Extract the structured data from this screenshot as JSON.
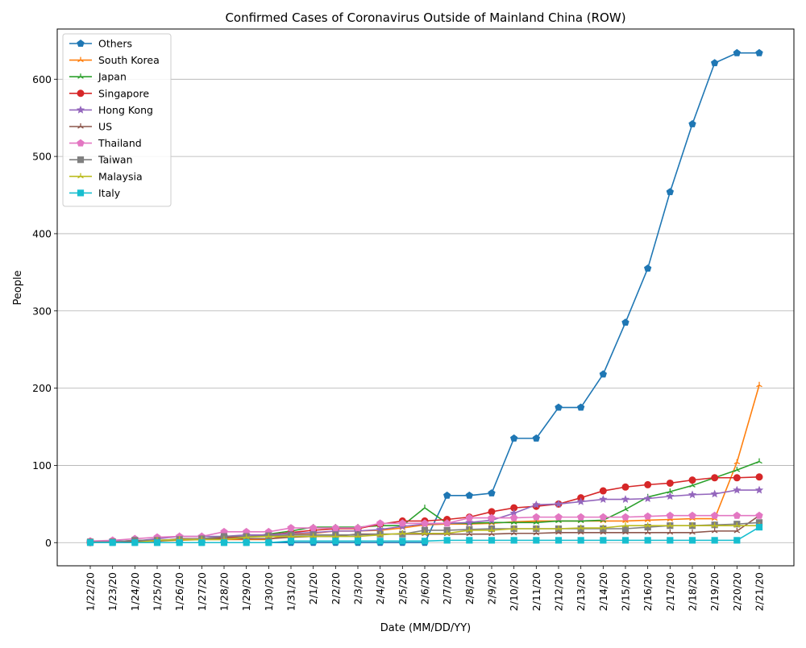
{
  "chart_data": {
    "type": "line",
    "title": "Confirmed Cases of Coronavirus Outside of Mainland China (ROW)",
    "xlabel": "Date (MM/DD/YY)",
    "ylabel": "People",
    "ylim": [
      -30,
      665
    ],
    "yticks": [
      0,
      100,
      200,
      300,
      400,
      500,
      600
    ],
    "grid": "horizontal",
    "legend_position": "upper-left",
    "categories": [
      "1/22/20",
      "1/23/20",
      "1/24/20",
      "1/25/20",
      "1/26/20",
      "1/27/20",
      "1/28/20",
      "1/29/20",
      "1/30/20",
      "1/31/20",
      "2/1/20",
      "2/2/20",
      "2/3/20",
      "2/4/20",
      "2/5/20",
      "2/6/20",
      "2/7/20",
      "2/8/20",
      "2/9/20",
      "2/10/20",
      "2/11/20",
      "2/12/20",
      "2/13/20",
      "2/14/20",
      "2/15/20",
      "2/16/20",
      "2/17/20",
      "2/18/20",
      "2/19/20",
      "2/20/20",
      "2/21/20"
    ],
    "series": [
      {
        "name": "Others",
        "color": "#1f77b4",
        "marker": "pentagon",
        "values": [
          0,
          0,
          0,
          0,
          0,
          0,
          0,
          0,
          0,
          0,
          0,
          0,
          0,
          0,
          0,
          0,
          61,
          61,
          64,
          135,
          135,
          175,
          175,
          218,
          285,
          355,
          454,
          542,
          621,
          634,
          634
        ]
      },
      {
        "name": "South Korea",
        "color": "#ff7f0e",
        "marker": "tri",
        "values": [
          1,
          1,
          2,
          2,
          3,
          4,
          4,
          4,
          4,
          11,
          12,
          15,
          15,
          16,
          19,
          23,
          24,
          24,
          25,
          27,
          28,
          28,
          28,
          28,
          28,
          29,
          30,
          31,
          31,
          104,
          204
        ]
      },
      {
        "name": "Japan",
        "color": "#2ca02c",
        "marker": "tri",
        "values": [
          2,
          1,
          2,
          2,
          4,
          4,
          7,
          7,
          11,
          15,
          20,
          20,
          20,
          22,
          22,
          45,
          25,
          25,
          26,
          26,
          26,
          28,
          28,
          29,
          43,
          59,
          66,
          74,
          84,
          94,
          105
        ]
      },
      {
        "name": "Singapore",
        "color": "#d62728",
        "marker": "circle",
        "values": [
          0,
          1,
          3,
          3,
          4,
          5,
          7,
          7,
          10,
          13,
          16,
          18,
          18,
          24,
          28,
          28,
          30,
          33,
          40,
          45,
          47,
          50,
          58,
          67,
          72,
          75,
          77,
          81,
          84,
          84,
          85
        ]
      },
      {
        "name": "Hong Kong",
        "color": "#9467bd",
        "marker": "star",
        "values": [
          0,
          2,
          2,
          5,
          8,
          8,
          8,
          10,
          10,
          12,
          13,
          15,
          15,
          17,
          21,
          24,
          25,
          26,
          29,
          38,
          49,
          50,
          53,
          56,
          56,
          57,
          60,
          62,
          63,
          68,
          68
        ]
      },
      {
        "name": "US",
        "color": "#8c564b",
        "marker": "tri",
        "values": [
          1,
          1,
          2,
          2,
          5,
          5,
          5,
          5,
          5,
          7,
          8,
          8,
          11,
          11,
          11,
          11,
          11,
          11,
          11,
          12,
          12,
          13,
          13,
          13,
          13,
          13,
          13,
          13,
          15,
          15,
          35
        ]
      },
      {
        "name": "Thailand",
        "color": "#e377c2",
        "marker": "pentagon",
        "values": [
          2,
          3,
          5,
          7,
          8,
          8,
          14,
          14,
          14,
          19,
          19,
          19,
          19,
          25,
          25,
          25,
          25,
          32,
          32,
          32,
          33,
          33,
          33,
          33,
          33,
          34,
          35,
          35,
          35,
          35,
          35
        ]
      },
      {
        "name": "Taiwan",
        "color": "#7f7f7f",
        "marker": "square",
        "values": [
          1,
          1,
          3,
          3,
          4,
          5,
          8,
          8,
          9,
          10,
          10,
          10,
          10,
          11,
          11,
          16,
          16,
          17,
          18,
          18,
          18,
          18,
          18,
          18,
          18,
          20,
          22,
          22,
          23,
          24,
          26
        ]
      },
      {
        "name": "Malaysia",
        "color": "#bcbd22",
        "marker": "tri",
        "values": [
          0,
          0,
          0,
          3,
          4,
          4,
          4,
          7,
          8,
          8,
          8,
          8,
          8,
          10,
          12,
          12,
          12,
          16,
          16,
          18,
          18,
          18,
          19,
          19,
          22,
          22,
          22,
          22,
          22,
          22,
          22
        ]
      },
      {
        "name": "Italy",
        "color": "#17becf",
        "marker": "square",
        "values": [
          0,
          0,
          0,
          0,
          0,
          0,
          0,
          0,
          0,
          2,
          2,
          2,
          2,
          2,
          2,
          2,
          3,
          3,
          3,
          3,
          3,
          3,
          3,
          3,
          3,
          3,
          3,
          3,
          3,
          3,
          20
        ]
      }
    ]
  }
}
